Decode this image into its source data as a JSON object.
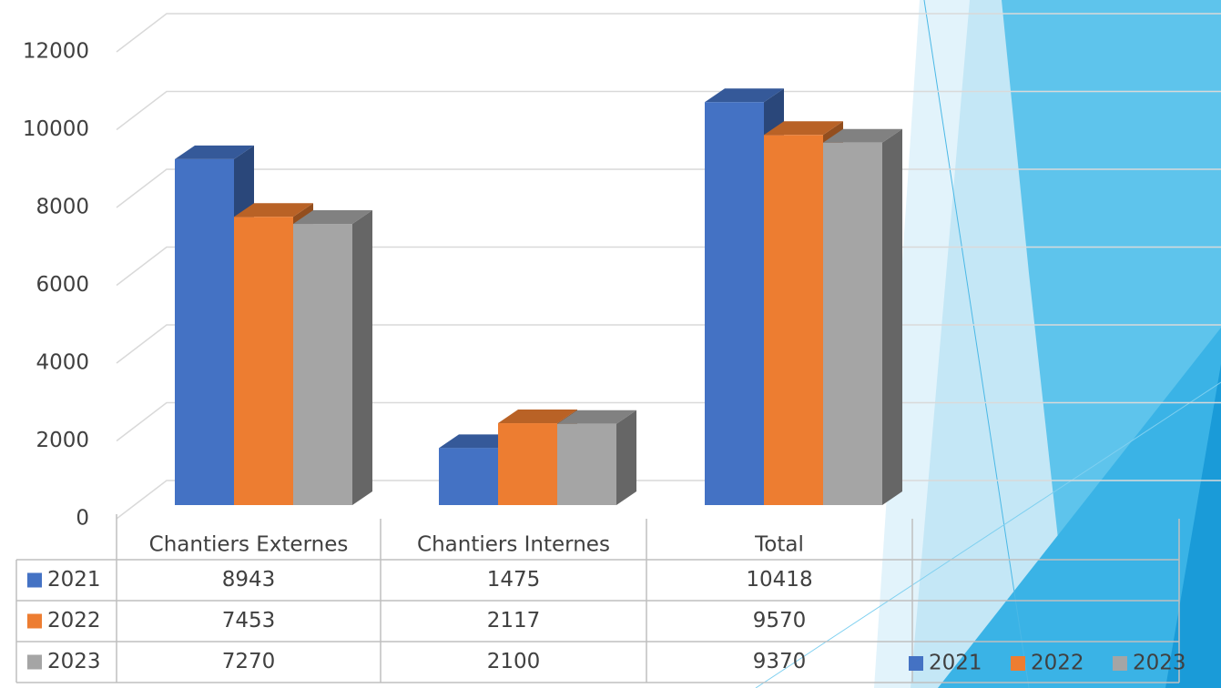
{
  "chart_data": {
    "type": "bar",
    "categories": [
      "Chantiers Externes",
      "Chantiers Internes",
      "Total"
    ],
    "series": [
      {
        "name": "2021",
        "color": "#4472c4",
        "values": [
          8943,
          1475,
          10418
        ]
      },
      {
        "name": "2022",
        "color": "#ed7d31",
        "values": [
          7453,
          2117,
          9570
        ]
      },
      {
        "name": "2023",
        "color": "#a5a5a5",
        "values": [
          7270,
          2100,
          9370
        ]
      }
    ],
    "ylim": [
      0,
      12000
    ],
    "yticks": [
      0,
      2000,
      4000,
      6000,
      8000,
      10000,
      12000
    ],
    "grid": true,
    "data_table": true,
    "legend": "bottom-right"
  }
}
